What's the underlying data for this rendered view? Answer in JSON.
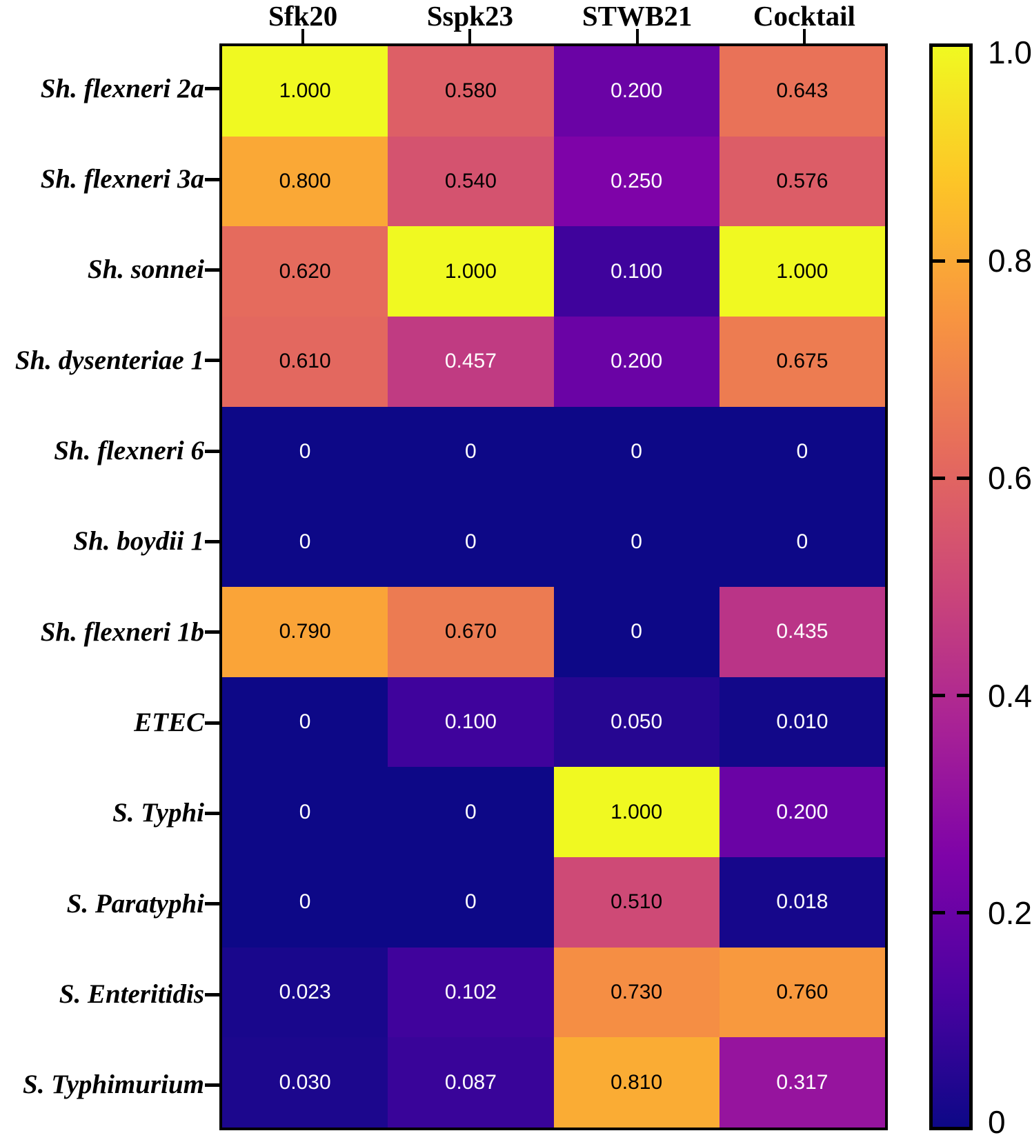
{
  "chart_data": {
    "type": "heatmap",
    "title": "",
    "xlabel": "",
    "ylabel": "",
    "columns": [
      "Sfk20",
      "Sspk23",
      "STWB21",
      "Cocktail"
    ],
    "rows": [
      "Sh. flexneri 2a",
      "Sh. flexneri 3a",
      "Sh. sonnei",
      "Sh. dysenteriae 1",
      "Sh. flexneri 6",
      "Sh. boydii 1",
      "Sh. flexneri 1b",
      "ETEC",
      "S. Typhi",
      "S. Paratyphi",
      "S. Enteritidis",
      "S. Typhimurium"
    ],
    "values": [
      [
        1.0,
        0.58,
        0.2,
        0.643
      ],
      [
        0.8,
        0.54,
        0.25,
        0.576
      ],
      [
        0.62,
        1.0,
        0.1,
        1.0
      ],
      [
        0.61,
        0.457,
        0.2,
        0.675
      ],
      [
        0,
        0,
        0,
        0
      ],
      [
        0,
        0,
        0,
        0
      ],
      [
        0.79,
        0.67,
        0,
        0.435
      ],
      [
        0,
        0.1,
        0.05,
        0.01
      ],
      [
        0,
        0,
        1.0,
        0.2
      ],
      [
        0,
        0,
        0.51,
        0.018
      ],
      [
        0.023,
        0.102,
        0.73,
        0.76
      ],
      [
        0.03,
        0.087,
        0.81,
        0.317
      ]
    ],
    "value_range": [
      0,
      1
    ],
    "grid": false,
    "legend_position": "right-colorbar",
    "colorbar": {
      "tick_labels": [
        "1.0",
        "0.8",
        "0.6",
        "0.4",
        "0.2",
        "0"
      ],
      "tick_values": [
        1.0,
        0.8,
        0.6,
        0.4,
        0.2,
        0
      ]
    },
    "colormap": {
      "name": "plasma",
      "stops": [
        {
          "v": 0.0,
          "c": "#0d0887"
        },
        {
          "v": 0.125,
          "c": "#4c02a1"
        },
        {
          "v": 0.25,
          "c": "#7e03a8"
        },
        {
          "v": 0.375,
          "c": "#aa2395"
        },
        {
          "v": 0.5,
          "c": "#cc4778"
        },
        {
          "v": 0.625,
          "c": "#e66c5c"
        },
        {
          "v": 0.75,
          "c": "#f89540"
        },
        {
          "v": 0.875,
          "c": "#fdc527"
        },
        {
          "v": 1.0,
          "c": "#f0f921"
        }
      ]
    },
    "annotation_text_colors": {
      "high": "#000000",
      "low": "#ffffff",
      "threshold": 0.5
    }
  }
}
